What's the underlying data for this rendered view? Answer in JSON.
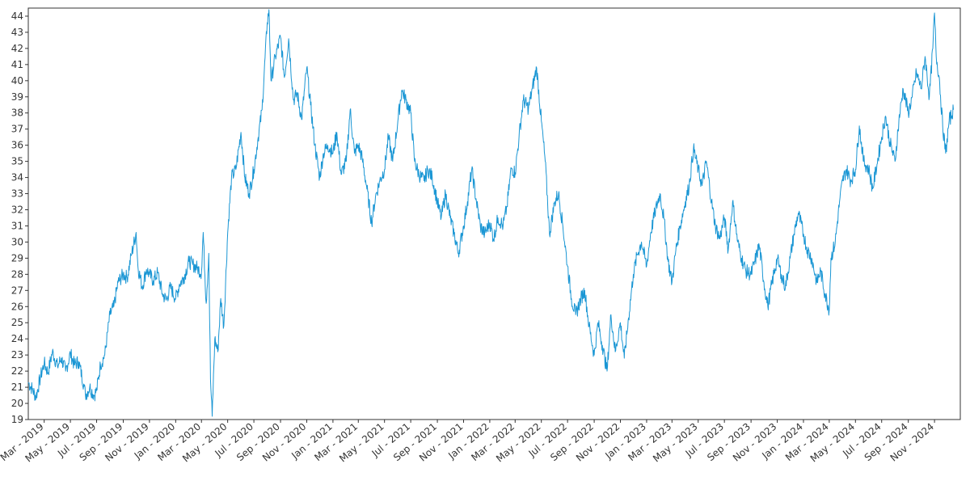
{
  "chart_data": {
    "type": "line",
    "title": "",
    "xlabel": "",
    "ylabel": "",
    "ylim": [
      19,
      44.5
    ],
    "xlim": [
      "2019-01-23",
      "2024-12-31"
    ],
    "grid": false,
    "legend": "none",
    "y_ticks": [
      19,
      20,
      21,
      22,
      23,
      24,
      25,
      26,
      27,
      28,
      29,
      30,
      31,
      32,
      33,
      34,
      35,
      36,
      37,
      38,
      39,
      40,
      41,
      42,
      43,
      44
    ],
    "x_ticks": [
      {
        "date": "2019-03-01",
        "label": "Mar - 2019"
      },
      {
        "date": "2019-05-01",
        "label": "May - 2019"
      },
      {
        "date": "2019-07-01",
        "label": "Jul - 2019"
      },
      {
        "date": "2019-09-01",
        "label": "Sep - 2019"
      },
      {
        "date": "2019-11-01",
        "label": "Nov - 2019"
      },
      {
        "date": "2020-01-01",
        "label": "Jan - 2020"
      },
      {
        "date": "2020-03-01",
        "label": "Mar - 2020"
      },
      {
        "date": "2020-05-01",
        "label": "May - 2020"
      },
      {
        "date": "2020-07-01",
        "label": "Jul - 2020"
      },
      {
        "date": "2020-09-01",
        "label": "Sep - 2020"
      },
      {
        "date": "2020-11-01",
        "label": "Nov - 2020"
      },
      {
        "date": "2021-01-01",
        "label": "Jan - 2021"
      },
      {
        "date": "2021-03-01",
        "label": "Mar - 2021"
      },
      {
        "date": "2021-05-01",
        "label": "May - 2021"
      },
      {
        "date": "2021-07-01",
        "label": "Jul - 2021"
      },
      {
        "date": "2021-09-01",
        "label": "Sep - 2021"
      },
      {
        "date": "2021-11-01",
        "label": "Nov - 2021"
      },
      {
        "date": "2022-01-01",
        "label": "Jan - 2022"
      },
      {
        "date": "2022-03-01",
        "label": "Mar - 2022"
      },
      {
        "date": "2022-05-01",
        "label": "May - 2022"
      },
      {
        "date": "2022-07-01",
        "label": "Jul - 2022"
      },
      {
        "date": "2022-09-01",
        "label": "Sep - 2022"
      },
      {
        "date": "2022-11-01",
        "label": "Nov - 2022"
      },
      {
        "date": "2023-01-01",
        "label": "Jan - 2023"
      },
      {
        "date": "2023-03-01",
        "label": "Mar - 2023"
      },
      {
        "date": "2023-05-01",
        "label": "May - 2023"
      },
      {
        "date": "2023-07-01",
        "label": "Jul - 2023"
      },
      {
        "date": "2023-09-01",
        "label": "Sep - 2023"
      },
      {
        "date": "2023-11-01",
        "label": "Nov - 2023"
      },
      {
        "date": "2024-01-01",
        "label": "Jan - 2024"
      },
      {
        "date": "2024-03-01",
        "label": "Mar - 2024"
      },
      {
        "date": "2024-05-01",
        "label": "May - 2024"
      },
      {
        "date": "2024-07-01",
        "label": "Jul - 2024"
      },
      {
        "date": "2024-09-01",
        "label": "Sep - 2024"
      },
      {
        "date": "2024-11-01",
        "label": "Nov - 2024"
      }
    ],
    "series": [
      {
        "color": "#1a96d4",
        "points": [
          [
            "2019-01-23",
            21.3
          ],
          [
            "2019-02-01",
            20.9
          ],
          [
            "2019-02-10",
            20.4
          ],
          [
            "2019-02-20",
            21.6
          ],
          [
            "2019-03-01",
            22.5
          ],
          [
            "2019-03-10",
            21.9
          ],
          [
            "2019-03-20",
            23.2
          ],
          [
            "2019-04-01",
            22.3
          ],
          [
            "2019-04-10",
            22.8
          ],
          [
            "2019-04-20",
            22.0
          ],
          [
            "2019-05-01",
            23.1
          ],
          [
            "2019-05-10",
            22.4
          ],
          [
            "2019-05-20",
            22.6
          ],
          [
            "2019-06-01",
            21.2
          ],
          [
            "2019-06-05",
            20.5
          ],
          [
            "2019-06-15",
            21.0
          ],
          [
            "2019-06-25",
            20.5
          ],
          [
            "2019-07-01",
            20.8
          ],
          [
            "2019-07-10",
            22.4
          ],
          [
            "2019-07-20",
            23.0
          ],
          [
            "2019-08-01",
            25.5
          ],
          [
            "2019-08-10",
            26.0
          ],
          [
            "2019-08-20",
            27.5
          ],
          [
            "2019-09-01",
            28.0
          ],
          [
            "2019-09-10",
            27.8
          ],
          [
            "2019-09-20",
            29.2
          ],
          [
            "2019-10-01",
            30.6
          ],
          [
            "2019-10-05",
            28.5
          ],
          [
            "2019-10-15",
            27.2
          ],
          [
            "2019-10-25",
            28.3
          ],
          [
            "2019-11-01",
            28.0
          ],
          [
            "2019-11-10",
            27.6
          ],
          [
            "2019-11-20",
            28.1
          ],
          [
            "2019-12-01",
            26.8
          ],
          [
            "2019-12-10",
            26.4
          ],
          [
            "2019-12-20",
            27.2
          ],
          [
            "2020-01-01",
            26.5
          ],
          [
            "2020-01-10",
            27.4
          ],
          [
            "2020-01-20",
            27.8
          ],
          [
            "2020-02-01",
            28.8
          ],
          [
            "2020-02-10",
            28.6
          ],
          [
            "2020-02-20",
            28.4
          ],
          [
            "2020-03-01",
            28.1
          ],
          [
            "2020-03-05",
            30.6
          ],
          [
            "2020-03-12",
            26.2
          ],
          [
            "2020-03-18",
            29.3
          ],
          [
            "2020-03-22",
            21.5
          ],
          [
            "2020-03-26",
            19.2
          ],
          [
            "2020-04-01",
            24.0
          ],
          [
            "2020-04-08",
            23.2
          ],
          [
            "2020-04-15",
            26.5
          ],
          [
            "2020-04-22",
            24.8
          ],
          [
            "2020-05-01",
            30.6
          ],
          [
            "2020-05-10",
            34.0
          ],
          [
            "2020-05-20",
            34.5
          ],
          [
            "2020-06-01",
            36.8
          ],
          [
            "2020-06-10",
            34.0
          ],
          [
            "2020-06-20",
            33.0
          ],
          [
            "2020-07-01",
            34.5
          ],
          [
            "2020-07-10",
            36.3
          ],
          [
            "2020-07-20",
            38.2
          ],
          [
            "2020-08-01",
            43.6
          ],
          [
            "2020-08-05",
            44.4
          ],
          [
            "2020-08-10",
            40.0
          ],
          [
            "2020-08-20",
            41.5
          ],
          [
            "2020-09-01",
            42.7
          ],
          [
            "2020-09-10",
            40.2
          ],
          [
            "2020-09-20",
            42.6
          ],
          [
            "2020-10-01",
            38.8
          ],
          [
            "2020-10-10",
            39.2
          ],
          [
            "2020-10-20",
            37.6
          ],
          [
            "2020-11-01",
            40.8
          ],
          [
            "2020-11-10",
            38.5
          ],
          [
            "2020-11-20",
            36.0
          ],
          [
            "2020-12-01",
            34.0
          ],
          [
            "2020-12-10",
            35.5
          ],
          [
            "2020-12-20",
            36.0
          ],
          [
            "2021-01-01",
            35.5
          ],
          [
            "2021-01-10",
            36.8
          ],
          [
            "2021-01-20",
            34.2
          ],
          [
            "2021-02-01",
            35.0
          ],
          [
            "2021-02-10",
            38.2
          ],
          [
            "2021-02-20",
            35.5
          ],
          [
            "2021-03-01",
            36.0
          ],
          [
            "2021-03-10",
            35.2
          ],
          [
            "2021-03-20",
            33.5
          ],
          [
            "2021-04-01",
            31.2
          ],
          [
            "2021-04-10",
            32.8
          ],
          [
            "2021-04-20",
            33.8
          ],
          [
            "2021-05-01",
            34.5
          ],
          [
            "2021-05-10",
            36.5
          ],
          [
            "2021-05-20",
            35.0
          ],
          [
            "2021-06-01",
            37.5
          ],
          [
            "2021-06-10",
            39.4
          ],
          [
            "2021-06-20",
            38.8
          ],
          [
            "2021-07-01",
            38.0
          ],
          [
            "2021-07-10",
            35.0
          ],
          [
            "2021-07-20",
            34.2
          ],
          [
            "2021-08-01",
            33.8
          ],
          [
            "2021-08-10",
            34.5
          ],
          [
            "2021-08-20",
            34.0
          ],
          [
            "2021-09-01",
            32.5
          ],
          [
            "2021-09-10",
            31.5
          ],
          [
            "2021-09-20",
            33.0
          ],
          [
            "2021-10-01",
            31.5
          ],
          [
            "2021-10-10",
            30.5
          ],
          [
            "2021-10-20",
            29.3
          ],
          [
            "2021-11-01",
            31.0
          ],
          [
            "2021-11-10",
            32.5
          ],
          [
            "2021-11-20",
            34.5
          ],
          [
            "2021-12-01",
            32.5
          ],
          [
            "2021-12-10",
            31.0
          ],
          [
            "2021-12-20",
            30.5
          ],
          [
            "2022-01-01",
            31.2
          ],
          [
            "2022-01-10",
            30.2
          ],
          [
            "2022-01-20",
            31.5
          ],
          [
            "2022-02-01",
            31.0
          ],
          [
            "2022-02-10",
            32.2
          ],
          [
            "2022-02-20",
            34.6
          ],
          [
            "2022-03-01",
            34.3
          ],
          [
            "2022-03-10",
            36.5
          ],
          [
            "2022-03-20",
            38.8
          ],
          [
            "2022-04-01",
            38.3
          ],
          [
            "2022-04-10",
            39.5
          ],
          [
            "2022-04-20",
            40.8
          ],
          [
            "2022-05-01",
            37.5
          ],
          [
            "2022-05-10",
            35.0
          ],
          [
            "2022-05-20",
            30.5
          ],
          [
            "2022-06-01",
            32.5
          ],
          [
            "2022-06-10",
            33.0
          ],
          [
            "2022-06-20",
            31.0
          ],
          [
            "2022-07-01",
            28.5
          ],
          [
            "2022-07-10",
            26.5
          ],
          [
            "2022-07-20",
            25.5
          ],
          [
            "2022-08-01",
            26.5
          ],
          [
            "2022-08-10",
            27.0
          ],
          [
            "2022-08-20",
            24.8
          ],
          [
            "2022-09-01",
            23.0
          ],
          [
            "2022-09-10",
            25.0
          ],
          [
            "2022-09-20",
            23.6
          ],
          [
            "2022-10-01",
            22.0
          ],
          [
            "2022-10-10",
            25.5
          ],
          [
            "2022-10-20",
            23.2
          ],
          [
            "2022-11-01",
            25.0
          ],
          [
            "2022-11-10",
            22.8
          ],
          [
            "2022-11-20",
            25.3
          ],
          [
            "2022-12-01",
            28.0
          ],
          [
            "2022-12-10",
            29.2
          ],
          [
            "2022-12-20",
            30.0
          ],
          [
            "2023-01-01",
            28.5
          ],
          [
            "2023-01-10",
            30.5
          ],
          [
            "2023-01-20",
            31.8
          ],
          [
            "2023-02-01",
            33.0
          ],
          [
            "2023-02-10",
            31.5
          ],
          [
            "2023-02-20",
            28.8
          ],
          [
            "2023-03-01",
            27.5
          ],
          [
            "2023-03-10",
            29.5
          ],
          [
            "2023-03-20",
            31.0
          ],
          [
            "2023-04-01",
            32.5
          ],
          [
            "2023-04-10",
            33.5
          ],
          [
            "2023-04-20",
            35.8
          ],
          [
            "2023-05-01",
            34.5
          ],
          [
            "2023-05-10",
            33.5
          ],
          [
            "2023-05-20",
            35.0
          ],
          [
            "2023-06-01",
            32.5
          ],
          [
            "2023-06-10",
            31.0
          ],
          [
            "2023-06-20",
            30.2
          ],
          [
            "2023-07-01",
            31.5
          ],
          [
            "2023-07-10",
            29.5
          ],
          [
            "2023-07-20",
            32.5
          ],
          [
            "2023-08-01",
            30.0
          ],
          [
            "2023-08-10",
            29.0
          ],
          [
            "2023-08-20",
            28.2
          ],
          [
            "2023-09-01",
            28.0
          ],
          [
            "2023-09-10",
            28.8
          ],
          [
            "2023-09-20",
            29.8
          ],
          [
            "2023-10-01",
            27.5
          ],
          [
            "2023-10-10",
            26.0
          ],
          [
            "2023-10-20",
            27.5
          ],
          [
            "2023-11-01",
            29.0
          ],
          [
            "2023-11-10",
            28.0
          ],
          [
            "2023-11-20",
            27.2
          ],
          [
            "2023-12-01",
            29.0
          ],
          [
            "2023-12-10",
            30.5
          ],
          [
            "2023-12-20",
            31.8
          ],
          [
            "2024-01-01",
            30.5
          ],
          [
            "2024-01-10",
            29.5
          ],
          [
            "2024-01-20",
            29.0
          ],
          [
            "2024-02-01",
            27.5
          ],
          [
            "2024-02-10",
            28.2
          ],
          [
            "2024-02-20",
            26.8
          ],
          [
            "2024-03-01",
            25.8
          ],
          [
            "2024-03-05",
            29.0
          ],
          [
            "2024-03-15",
            30.0
          ],
          [
            "2024-03-25",
            32.5
          ],
          [
            "2024-04-01",
            33.8
          ],
          [
            "2024-04-10",
            34.5
          ],
          [
            "2024-04-20",
            33.8
          ],
          [
            "2024-05-01",
            34.5
          ],
          [
            "2024-05-10",
            37.2
          ],
          [
            "2024-05-20",
            35.0
          ],
          [
            "2024-06-01",
            34.5
          ],
          [
            "2024-06-10",
            33.3
          ],
          [
            "2024-06-20",
            34.8
          ],
          [
            "2024-07-01",
            36.5
          ],
          [
            "2024-07-10",
            37.8
          ],
          [
            "2024-07-20",
            36.2
          ],
          [
            "2024-08-01",
            35.0
          ],
          [
            "2024-08-10",
            37.5
          ],
          [
            "2024-08-20",
            39.5
          ],
          [
            "2024-09-01",
            38.0
          ],
          [
            "2024-09-10",
            39.0
          ],
          [
            "2024-09-20",
            40.5
          ],
          [
            "2024-10-01",
            39.5
          ],
          [
            "2024-10-10",
            41.5
          ],
          [
            "2024-10-20",
            39.0
          ],
          [
            "2024-10-28",
            42.0
          ],
          [
            "2024-11-01",
            44.2
          ],
          [
            "2024-11-05",
            41.5
          ],
          [
            "2024-11-12",
            40.2
          ],
          [
            "2024-11-20",
            37.2
          ],
          [
            "2024-11-27",
            35.5
          ],
          [
            "2024-12-05",
            37.5
          ],
          [
            "2024-12-15",
            38.2
          ]
        ]
      }
    ]
  }
}
